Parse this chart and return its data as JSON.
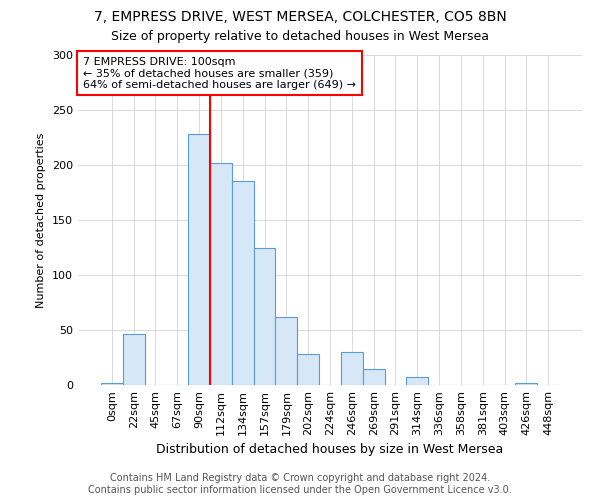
{
  "title1": "7, EMPRESS DRIVE, WEST MERSEA, COLCHESTER, CO5 8BN",
  "title2": "Size of property relative to detached houses in West Mersea",
  "xlabel": "Distribution of detached houses by size in West Mersea",
  "ylabel": "Number of detached properties",
  "footnote1": "Contains HM Land Registry data © Crown copyright and database right 2024.",
  "footnote2": "Contains public sector information licensed under the Open Government Licence v3.0.",
  "annotation_line1": "7 EMPRESS DRIVE: 100sqm",
  "annotation_line2": "← 35% of detached houses are smaller (359)",
  "annotation_line3": "64% of semi-detached houses are larger (649) →",
  "bar_labels": [
    "0sqm",
    "22sqm",
    "45sqm",
    "67sqm",
    "90sqm",
    "112sqm",
    "134sqm",
    "157sqm",
    "179sqm",
    "202sqm",
    "224sqm",
    "246sqm",
    "269sqm",
    "291sqm",
    "314sqm",
    "336sqm",
    "358sqm",
    "381sqm",
    "403sqm",
    "426sqm",
    "448sqm"
  ],
  "bar_values": [
    2,
    46,
    0,
    0,
    228,
    202,
    185,
    125,
    62,
    28,
    0,
    30,
    15,
    0,
    7,
    0,
    0,
    0,
    0,
    2,
    0
  ],
  "bar_color": "#d6e8f7",
  "bar_edge_color": "#5b9bd5",
  "red_line_x": 4.5,
  "ylim": [
    0,
    300
  ],
  "yticks": [
    0,
    50,
    100,
    150,
    200,
    250,
    300
  ],
  "title1_fontsize": 10,
  "title2_fontsize": 9,
  "xlabel_fontsize": 9,
  "ylabel_fontsize": 8,
  "tick_fontsize": 8,
  "footnote_fontsize": 7,
  "annot_fontsize": 8
}
